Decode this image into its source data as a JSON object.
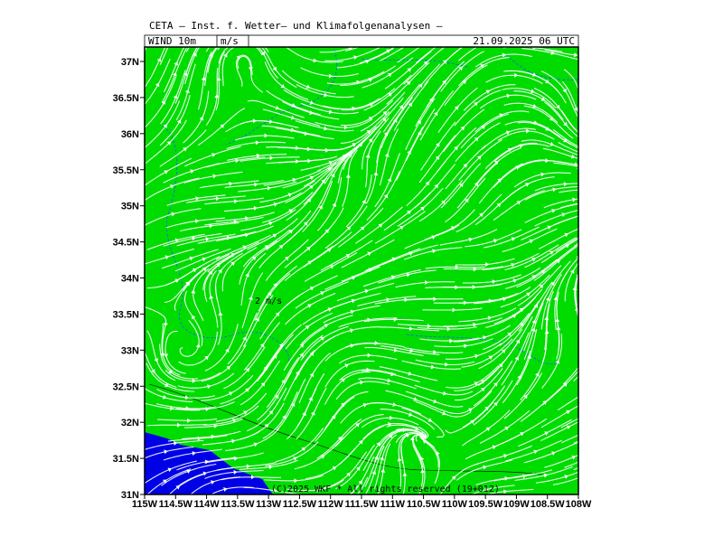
{
  "header": {
    "title": "CETA — Inst. f. Wetter— und Klimafolgenanalysen —",
    "field": "WIND  10m",
    "unit": "m/s",
    "date": "21.09.2025 06 UTC"
  },
  "map": {
    "lat_labels": [
      "37N",
      "36.5N",
      "36N",
      "35.5N",
      "35N",
      "34.5N",
      "34N",
      "33.5N",
      "33N",
      "32.5N",
      "32N",
      "31.5N",
      "31N"
    ],
    "lon_labels": [
      "115W",
      "114.5W",
      "114W",
      "113.5W",
      "113W",
      "112.5W",
      "112W",
      "111.5W",
      "111W",
      "110.5W",
      "110W",
      "109.5W",
      "109W",
      "108.5W",
      "108W"
    ],
    "scale_label": "2 m/s",
    "copyright": "(C)2025 WKF * All rights reserved (19+012)"
  }
}
